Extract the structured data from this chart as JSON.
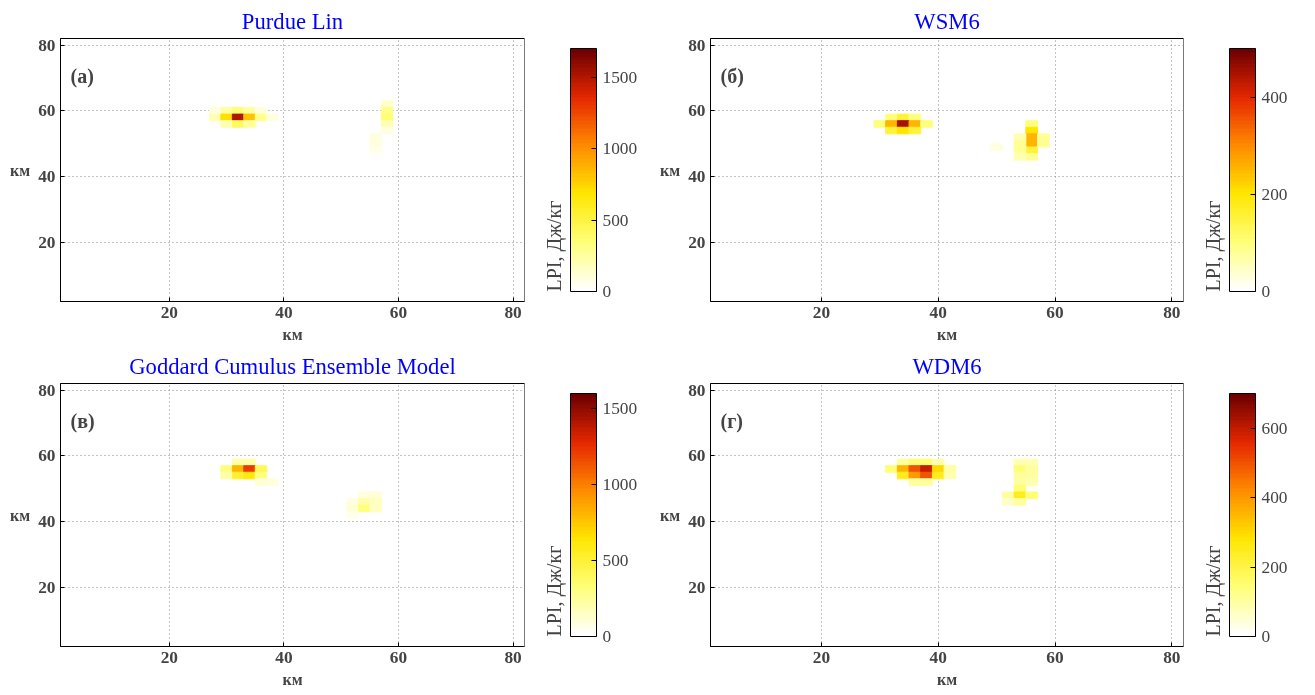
{
  "chart_data": [
    {
      "type": "scatter",
      "title": "Purdue Lin",
      "xlabel": "км",
      "ylabel": "км",
      "clabel": "LPI, Дж/кг",
      "annotations": [
        "(а)"
      ],
      "xlim": [
        1,
        82
      ],
      "ylim": [
        2,
        82
      ],
      "xticks": [
        20,
        40,
        60,
        80
      ],
      "yticks": [
        20,
        40,
        60,
        80
      ],
      "clim": [
        0,
        1700
      ],
      "cticks": [
        0,
        500,
        1000,
        1500
      ],
      "grid": true,
      "marker": "square",
      "x": [
        28,
        30,
        32,
        34,
        36,
        28,
        30,
        32,
        34,
        36,
        38,
        30,
        32,
        34,
        58,
        58,
        58,
        58,
        58,
        56,
        56,
        56
      ],
      "values": [
        60,
        60,
        60,
        60,
        60,
        58,
        58,
        58,
        58,
        58,
        58,
        56,
        56,
        56,
        62,
        60,
        58,
        56,
        54,
        52,
        50,
        48
      ],
      "cvalues": [
        100,
        250,
        350,
        250,
        100,
        200,
        700,
        1500,
        800,
        300,
        100,
        200,
        400,
        250,
        150,
        300,
        350,
        200,
        100,
        80,
        80,
        60
      ]
    },
    {
      "type": "scatter",
      "title": "WSM6",
      "xlabel": "км",
      "ylabel": "км",
      "clabel": "LPI, Дж/кг",
      "annotations": [
        "(б)"
      ],
      "xlim": [
        1,
        82
      ],
      "ylim": [
        2,
        82
      ],
      "xticks": [
        20,
        40,
        60,
        80
      ],
      "yticks": [
        20,
        40,
        60,
        80
      ],
      "clim": [
        0,
        500
      ],
      "cticks": [
        0,
        200,
        400
      ],
      "grid": true,
      "marker": "square",
      "x": [
        32,
        34,
        36,
        30,
        32,
        34,
        36,
        38,
        32,
        34,
        36,
        56,
        56,
        56,
        56,
        56,
        56,
        54,
        54,
        54,
        54,
        58,
        58,
        50
      ],
      "values": [
        58,
        58,
        58,
        56,
        56,
        56,
        56,
        56,
        54,
        54,
        54,
        56,
        54,
        52,
        50,
        48,
        46,
        52,
        50,
        48,
        46,
        52,
        50,
        49
      ],
      "cvalues": [
        100,
        150,
        100,
        100,
        250,
        450,
        250,
        100,
        150,
        200,
        150,
        100,
        200,
        250,
        250,
        150,
        80,
        60,
        80,
        80,
        60,
        80,
        80,
        30
      ]
    },
    {
      "type": "scatter",
      "title": "Goddard Cumulus Ensemble Model",
      "xlabel": "км",
      "ylabel": "км",
      "clabel": "LPI, Дж/кг",
      "annotations": [
        "(в)"
      ],
      "xlim": [
        1,
        82
      ],
      "ylim": [
        2,
        82
      ],
      "xticks": [
        20,
        40,
        60,
        80
      ],
      "yticks": [
        20,
        40,
        60,
        80
      ],
      "clim": [
        0,
        1600
      ],
      "cticks": [
        0,
        500,
        1000,
        1500
      ],
      "grid": true,
      "marker": "square",
      "x": [
        32,
        34,
        30,
        32,
        34,
        36,
        30,
        32,
        34,
        36,
        36,
        38,
        54,
        56,
        52,
        54,
        56,
        52,
        54,
        56,
        52
      ],
      "values": [
        58,
        58,
        56,
        56,
        56,
        56,
        54,
        54,
        54,
        54,
        52,
        52,
        48,
        48,
        46,
        46,
        46,
        44,
        44,
        44,
        42
      ],
      "cvalues": [
        200,
        200,
        300,
        800,
        1200,
        400,
        200,
        500,
        600,
        300,
        100,
        80,
        80,
        100,
        80,
        200,
        150,
        100,
        300,
        150,
        60
      ]
    },
    {
      "type": "scatter",
      "title": "WDM6",
      "xlabel": "км",
      "ylabel": "км",
      "clabel": "LPI, Дж/кг",
      "annotations": [
        "(г)"
      ],
      "xlim": [
        1,
        82
      ],
      "ylim": [
        2,
        82
      ],
      "xticks": [
        20,
        40,
        60,
        80
      ],
      "yticks": [
        20,
        40,
        60,
        80
      ],
      "clim": [
        0,
        700
      ],
      "cticks": [
        0,
        200,
        400,
        600
      ],
      "grid": true,
      "marker": "square",
      "x": [
        34,
        36,
        38,
        40,
        32,
        34,
        36,
        38,
        40,
        42,
        34,
        36,
        38,
        40,
        42,
        36,
        38,
        54,
        56,
        54,
        56,
        54,
        56,
        54,
        56,
        54,
        52,
        54,
        56,
        52,
        54
      ],
      "values": [
        58,
        58,
        58,
        58,
        56,
        56,
        56,
        56,
        56,
        56,
        54,
        54,
        54,
        54,
        54,
        52,
        52,
        58,
        58,
        56,
        56,
        54,
        54,
        52,
        52,
        50,
        48,
        48,
        48,
        46,
        46
      ],
      "cvalues": [
        100,
        150,
        150,
        80,
        150,
        350,
        500,
        600,
        300,
        100,
        250,
        400,
        500,
        250,
        80,
        100,
        100,
        80,
        80,
        150,
        100,
        100,
        100,
        100,
        80,
        150,
        100,
        250,
        150,
        60,
        100
      ]
    }
  ]
}
